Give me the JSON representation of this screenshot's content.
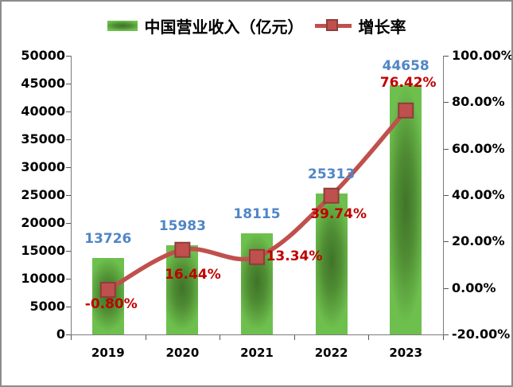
{
  "legend": {
    "items": [
      {
        "label": "中国营业收入（亿元）",
        "swatch": "bar-gradient"
      },
      {
        "label": "增长率",
        "swatch": "line-with-square-marker"
      }
    ],
    "position": "top-center"
  },
  "colors": {
    "bar_light": "#6ec04e",
    "bar_mid": "#4f8c33",
    "bar_dark": "#3f7429",
    "line": "#c0504d",
    "marker_fill": "#c0504d",
    "marker_border": "#8e3d3b",
    "bar_value_label": "#5086c6",
    "growth_value_label": "#c00000",
    "axis_line": "#7a7a7a",
    "tick": "#555555",
    "axis_text": "#000000",
    "background": "#ffffff",
    "outer_border": "#8c8c8c"
  },
  "chart_data": {
    "type": "bar+line combo",
    "title": "",
    "grid": false,
    "legend_position": "top",
    "categories": [
      "2019",
      "2020",
      "2021",
      "2022",
      "2023"
    ],
    "series": [
      {
        "name": "中国营业收入（亿元）",
        "type": "bar",
        "axis": "left",
        "values": [
          13726,
          15983,
          18115,
          25313,
          44658
        ],
        "labels": [
          "13726",
          "15983",
          "18115",
          "25313",
          "44658"
        ]
      },
      {
        "name": "增长率",
        "type": "line",
        "smoothed": true,
        "marker": "square",
        "axis": "right",
        "values_percent": [
          -0.8,
          16.44,
          13.34,
          39.74,
          76.42
        ],
        "labels": [
          "-0.80%",
          "16.44%",
          "13.34%",
          "39.74%",
          "76.42%"
        ],
        "label_offsets": [
          [
            4,
            18
          ],
          [
            13,
            31
          ],
          [
            47,
            -1
          ],
          [
            9,
            23
          ],
          [
            3,
            -35
          ]
        ]
      }
    ],
    "left_axis": {
      "min": 0,
      "max": 50000,
      "step": 5000,
      "tick_labels": [
        "50000",
        "45000",
        "40000",
        "35000",
        "30000",
        "25000",
        "20000",
        "15000",
        "10000",
        "5000",
        "0"
      ]
    },
    "right_axis": {
      "min_percent": -20,
      "max_percent": 100,
      "step_percent": 20,
      "tick_labels": [
        "100.00%",
        "80.00%",
        "60.00%",
        "40.00%",
        "20.00%",
        "0.00%",
        "-20.00%"
      ]
    }
  }
}
